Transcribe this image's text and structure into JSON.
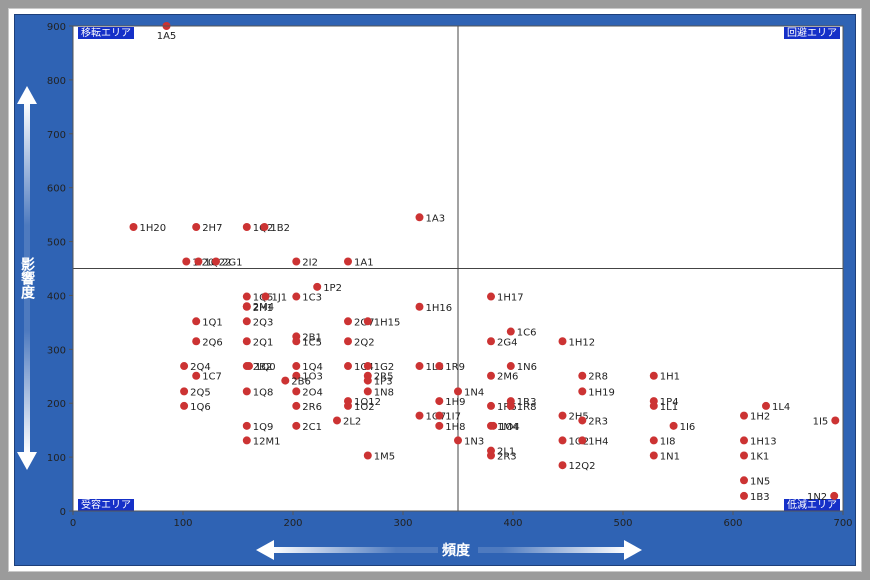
{
  "chart_data": {
    "type": "scatter",
    "title": "",
    "xlabel": "頻度",
    "ylabel": "影響度",
    "xlim": [
      0,
      700
    ],
    "ylim": [
      0,
      900
    ],
    "x_ticks": [
      0,
      100,
      200,
      300,
      400,
      500,
      600,
      700
    ],
    "y_ticks": [
      0,
      100,
      200,
      300,
      400,
      500,
      600,
      700,
      800,
      900
    ],
    "divider_x": 350,
    "divider_y": 450,
    "grid": false,
    "legend": "none",
    "zones": {
      "top_left": "移転エリア",
      "top_right": "回避エリア",
      "bottom_left": "受容エリア",
      "bottom_right": "低減エリア"
    },
    "colors": {
      "point": "#cc3333",
      "panel": "#2f63b4",
      "zone_label_bg": "#1530c8",
      "divider": "#444444"
    },
    "points": [
      {
        "label": "1A5",
        "x": 85,
        "y": 900
      },
      {
        "label": "1H20",
        "x": 55,
        "y": 527
      },
      {
        "label": "2H7",
        "x": 112,
        "y": 527
      },
      {
        "label": "1Q2",
        "x": 158,
        "y": 527
      },
      {
        "label": "1B2",
        "x": 174,
        "y": 527
      },
      {
        "label": "1A3",
        "x": 315,
        "y": 545
      },
      {
        "label": "1I20",
        "x": 103,
        "y": 463
      },
      {
        "label": "1Q22",
        "x": 114,
        "y": 463
      },
      {
        "label": "2G1",
        "x": 130,
        "y": 463
      },
      {
        "label": "2I2",
        "x": 203,
        "y": 463
      },
      {
        "label": "1A1",
        "x": 250,
        "y": 463
      },
      {
        "label": "1P2",
        "x": 222,
        "y": 416
      },
      {
        "label": "1Q5",
        "x": 158,
        "y": 398
      },
      {
        "label": "1J1",
        "x": 175,
        "y": 398
      },
      {
        "label": "1C3",
        "x": 203,
        "y": 398
      },
      {
        "label": "2M4",
        "x": 158,
        "y": 380
      },
      {
        "label": "2H1",
        "x": 158,
        "y": 379
      },
      {
        "label": "1H16",
        "x": 315,
        "y": 379
      },
      {
        "label": "1H17",
        "x": 380,
        "y": 398
      },
      {
        "label": "1Q1",
        "x": 112,
        "y": 352
      },
      {
        "label": "2Q3",
        "x": 158,
        "y": 352
      },
      {
        "label": "2G7",
        "x": 250,
        "y": 352
      },
      {
        "label": "1H15",
        "x": 268,
        "y": 352
      },
      {
        "label": "1C6",
        "x": 398,
        "y": 333
      },
      {
        "label": "2Q6",
        "x": 112,
        "y": 315
      },
      {
        "label": "2Q1",
        "x": 158,
        "y": 315
      },
      {
        "label": "2B1",
        "x": 203,
        "y": 324
      },
      {
        "label": "1C5",
        "x": 203,
        "y": 315
      },
      {
        "label": "2Q2",
        "x": 250,
        "y": 315
      },
      {
        "label": "2G4",
        "x": 380,
        "y": 315
      },
      {
        "label": "1H12",
        "x": 445,
        "y": 315
      },
      {
        "label": "2Q4",
        "x": 101,
        "y": 269
      },
      {
        "label": "2B2",
        "x": 158,
        "y": 269
      },
      {
        "label": "1Q0",
        "x": 160,
        "y": 269
      },
      {
        "label": "1Q4",
        "x": 203,
        "y": 269
      },
      {
        "label": "1C4",
        "x": 250,
        "y": 269
      },
      {
        "label": "1G2",
        "x": 268,
        "y": 269
      },
      {
        "label": "1L6",
        "x": 315,
        "y": 269
      },
      {
        "label": "1R9",
        "x": 333,
        "y": 269
      },
      {
        "label": "1N6",
        "x": 398,
        "y": 269
      },
      {
        "label": "1C7",
        "x": 112,
        "y": 251
      },
      {
        "label": "1O3",
        "x": 203,
        "y": 251
      },
      {
        "label": "2B6",
        "x": 193,
        "y": 242
      },
      {
        "label": "2R5",
        "x": 268,
        "y": 251
      },
      {
        "label": "1P3",
        "x": 268,
        "y": 242
      },
      {
        "label": "2M6",
        "x": 380,
        "y": 251
      },
      {
        "label": "2R8",
        "x": 463,
        "y": 251
      },
      {
        "label": "1H1",
        "x": 528,
        "y": 251
      },
      {
        "label": "2Q5",
        "x": 101,
        "y": 222
      },
      {
        "label": "1Q8",
        "x": 158,
        "y": 222
      },
      {
        "label": "2O4",
        "x": 203,
        "y": 222
      },
      {
        "label": "1N8",
        "x": 268,
        "y": 222
      },
      {
        "label": "1N4",
        "x": 350,
        "y": 222
      },
      {
        "label": "1H19",
        "x": 463,
        "y": 222
      },
      {
        "label": "1Q6",
        "x": 101,
        "y": 195
      },
      {
        "label": "2R6",
        "x": 203,
        "y": 195
      },
      {
        "label": "1O12",
        "x": 250,
        "y": 204
      },
      {
        "label": "1O2",
        "x": 250,
        "y": 195
      },
      {
        "label": "1H9",
        "x": 333,
        "y": 204
      },
      {
        "label": "1R6",
        "x": 380,
        "y": 195
      },
      {
        "label": "1R3",
        "x": 398,
        "y": 204
      },
      {
        "label": "1R8",
        "x": 398,
        "y": 195
      },
      {
        "label": "1L4",
        "x": 630,
        "y": 195
      },
      {
        "label": "1P4",
        "x": 528,
        "y": 204
      },
      {
        "label": "1L1",
        "x": 528,
        "y": 195
      },
      {
        "label": "1I5",
        "x": 693,
        "y": 168
      },
      {
        "label": "2L2",
        "x": 240,
        "y": 168
      },
      {
        "label": "1O7",
        "x": 315,
        "y": 177
      },
      {
        "label": "1I7",
        "x": 333,
        "y": 177
      },
      {
        "label": "2H5",
        "x": 445,
        "y": 177
      },
      {
        "label": "1H2",
        "x": 610,
        "y": 177
      },
      {
        "label": "2R3",
        "x": 463,
        "y": 168
      },
      {
        "label": "1I6",
        "x": 546,
        "y": 158
      },
      {
        "label": "1Q9",
        "x": 158,
        "y": 158
      },
      {
        "label": "2C1",
        "x": 203,
        "y": 158
      },
      {
        "label": "1H8",
        "x": 333,
        "y": 158
      },
      {
        "label": "1M4",
        "x": 380,
        "y": 158
      },
      {
        "label": "1O4",
        "x": 382,
        "y": 158
      },
      {
        "label": "12M1",
        "x": 158,
        "y": 131
      },
      {
        "label": "1N3",
        "x": 350,
        "y": 131
      },
      {
        "label": "1O2",
        "x": 445,
        "y": 131
      },
      {
        "label": "1H4",
        "x": 463,
        "y": 131
      },
      {
        "label": "1I8",
        "x": 528,
        "y": 131
      },
      {
        "label": "1H13",
        "x": 610,
        "y": 131
      },
      {
        "label": "1M5",
        "x": 268,
        "y": 103
      },
      {
        "label": "2L1",
        "x": 380,
        "y": 112
      },
      {
        "label": "2R3",
        "x": 380,
        "y": 103
      },
      {
        "label": "1N1",
        "x": 528,
        "y": 103
      },
      {
        "label": "1K1",
        "x": 610,
        "y": 103
      },
      {
        "label": "12Q2",
        "x": 445,
        "y": 85
      },
      {
        "label": "1N5",
        "x": 610,
        "y": 57
      },
      {
        "label": "1N2",
        "x": 692,
        "y": 28
      },
      {
        "label": "1B3",
        "x": 610,
        "y": 28
      }
    ]
  }
}
